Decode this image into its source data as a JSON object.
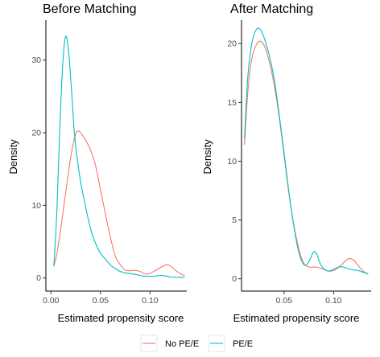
{
  "chart_data": [
    {
      "type": "line",
      "title": "Before Matching",
      "xlabel": "Estimated propensity score",
      "ylabel": "Density",
      "xlim": [
        -0.005,
        0.137
      ],
      "ylim": [
        -1.8,
        35.5
      ],
      "xticks": [
        0.0,
        0.05,
        0.1
      ],
      "xtick_labels": [
        "0.00",
        "0.05",
        "0.10"
      ],
      "yticks": [
        0,
        10,
        20,
        30
      ],
      "ytick_labels": [
        "0",
        "10",
        "20",
        "30"
      ],
      "grid": false,
      "series": [
        {
          "name": "No PE/E",
          "x": [
            0.003,
            0.006,
            0.01,
            0.015,
            0.02,
            0.025,
            0.028,
            0.03,
            0.035,
            0.04,
            0.045,
            0.05,
            0.055,
            0.06,
            0.065,
            0.07,
            0.075,
            0.08,
            0.085,
            0.09,
            0.095,
            0.1,
            0.105,
            0.11,
            0.115,
            0.118,
            0.122,
            0.127,
            0.132,
            0.135
          ],
          "y": [
            1.6,
            3.3,
            6.8,
            11.8,
            16.6,
            19.8,
            20.2,
            20.0,
            19.0,
            17.6,
            15.5,
            12.2,
            8.8,
            5.6,
            3.0,
            1.8,
            1.1,
            1.0,
            1.05,
            0.9,
            0.55,
            0.65,
            1.0,
            1.4,
            1.75,
            1.8,
            1.5,
            0.9,
            0.5,
            0.3
          ]
        },
        {
          "name": "PE/E",
          "x": [
            0.003,
            0.006,
            0.009,
            0.012,
            0.015,
            0.018,
            0.021,
            0.024,
            0.028,
            0.031,
            0.035,
            0.04,
            0.045,
            0.05,
            0.055,
            0.06,
            0.065,
            0.07,
            0.075,
            0.08,
            0.085,
            0.09,
            0.095,
            0.1,
            0.105,
            0.11,
            0.115,
            0.12,
            0.125,
            0.13,
            0.135
          ],
          "y": [
            1.6,
            9.0,
            20.5,
            29.5,
            33.3,
            31.0,
            25.5,
            19.5,
            15.0,
            12.5,
            9.8,
            6.8,
            4.8,
            3.4,
            2.6,
            1.8,
            1.3,
            0.9,
            0.7,
            0.6,
            0.5,
            0.35,
            0.25,
            0.25,
            0.25,
            0.35,
            0.3,
            0.15,
            0.1,
            0.1,
            0.05
          ]
        }
      ]
    },
    {
      "type": "line",
      "title": "After Matching",
      "xlabel": "Estimated propensity score",
      "ylabel": "Density",
      "xlim": [
        0.007,
        0.138
      ],
      "ylim": [
        -1.05,
        22.0
      ],
      "xticks": [
        0.05,
        0.1
      ],
      "xtick_labels": [
        "0.05",
        "0.10"
      ],
      "yticks": [
        0,
        5,
        10,
        15,
        20
      ],
      "ytick_labels": [
        "0",
        "5",
        "10",
        "15",
        "20"
      ],
      "grid": false,
      "series": [
        {
          "name": "No PE/E",
          "x": [
            0.01,
            0.013,
            0.016,
            0.019,
            0.022,
            0.025,
            0.028,
            0.031,
            0.035,
            0.04,
            0.045,
            0.05,
            0.055,
            0.06,
            0.065,
            0.07,
            0.075,
            0.08,
            0.085,
            0.09,
            0.095,
            0.1,
            0.105,
            0.11,
            0.115,
            0.12,
            0.125,
            0.13,
            0.135
          ],
          "y": [
            11.4,
            15.5,
            18.0,
            19.3,
            19.9,
            20.2,
            20.1,
            19.6,
            18.5,
            16.5,
            13.8,
            10.5,
            7.2,
            4.5,
            2.5,
            1.3,
            1.0,
            1.0,
            0.95,
            0.8,
            0.65,
            0.7,
            0.95,
            1.35,
            1.7,
            1.6,
            1.1,
            0.65,
            0.4
          ]
        },
        {
          "name": "PE/E",
          "x": [
            0.01,
            0.013,
            0.016,
            0.019,
            0.022,
            0.025,
            0.028,
            0.031,
            0.035,
            0.04,
            0.045,
            0.05,
            0.055,
            0.06,
            0.065,
            0.07,
            0.074,
            0.077,
            0.08,
            0.083,
            0.086,
            0.09,
            0.095,
            0.1,
            0.105,
            0.11,
            0.115,
            0.12,
            0.125,
            0.13,
            0.135
          ],
          "y": [
            11.9,
            16.8,
            19.3,
            20.6,
            21.2,
            21.3,
            20.9,
            20.2,
            19.0,
            17.0,
            14.0,
            10.7,
            7.3,
            4.4,
            2.2,
            1.2,
            1.3,
            1.8,
            2.3,
            2.1,
            1.4,
            0.85,
            0.65,
            0.8,
            1.0,
            1.0,
            0.85,
            0.75,
            0.7,
            0.55,
            0.4
          ]
        }
      ]
    }
  ],
  "legend": {
    "position": "bottom",
    "items": [
      {
        "label": "No PE/E",
        "color": "#F8766D"
      },
      {
        "label": "PE/E",
        "color": "#00BFC4"
      }
    ]
  },
  "colors": {
    "no_pe": "#F8766D",
    "pe": "#00BFC4"
  }
}
